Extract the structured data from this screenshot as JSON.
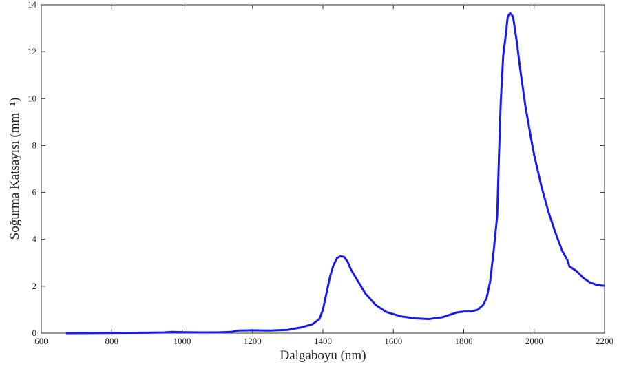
{
  "chart_data": {
    "type": "line",
    "xlabel": "Dalgaboyu (nm)",
    "ylabel": "Soğurma Katsayısı (mm⁻¹)",
    "x": [
      670,
      800,
      900,
      950,
      970,
      1000,
      1050,
      1100,
      1140,
      1160,
      1200,
      1250,
      1300,
      1340,
      1370,
      1390,
      1400,
      1410,
      1420,
      1430,
      1440,
      1450,
      1460,
      1470,
      1480,
      1500,
      1520,
      1550,
      1580,
      1620,
      1660,
      1700,
      1740,
      1760,
      1780,
      1800,
      1820,
      1840,
      1855,
      1865,
      1875,
      1885,
      1895,
      1900,
      1905,
      1912,
      1920,
      1925,
      1932,
      1940,
      1950,
      1960,
      1975,
      1990,
      2000,
      2020,
      2040,
      2060,
      2080,
      2095,
      2100,
      2120,
      2140,
      2160,
      2180,
      2200
    ],
    "series": [
      {
        "color": "#1a1aee",
        "values": [
          0.0,
          0.01,
          0.02,
          0.03,
          0.05,
          0.04,
          0.03,
          0.03,
          0.05,
          0.11,
          0.12,
          0.11,
          0.14,
          0.25,
          0.38,
          0.6,
          1.0,
          1.7,
          2.4,
          2.9,
          3.2,
          3.28,
          3.25,
          3.05,
          2.7,
          2.2,
          1.7,
          1.2,
          0.9,
          0.72,
          0.63,
          0.6,
          0.68,
          0.78,
          0.88,
          0.92,
          0.92,
          1.0,
          1.2,
          1.5,
          2.2,
          3.5,
          5.0,
          7.5,
          9.8,
          11.8,
          12.8,
          13.5,
          13.65,
          13.5,
          12.5,
          11.3,
          9.7,
          8.4,
          7.6,
          6.3,
          5.2,
          4.3,
          3.5,
          3.1,
          2.85,
          2.65,
          2.35,
          2.15,
          2.05,
          2.02
        ]
      }
    ],
    "xlim": [
      600,
      2200
    ],
    "xticks": [
      600,
      800,
      1000,
      1200,
      1400,
      1600,
      1800,
      2000,
      2200
    ],
    "ylim": [
      0,
      14
    ],
    "yticks": [
      0,
      2,
      4,
      6,
      8,
      10,
      12,
      14
    ],
    "grid": false
  }
}
